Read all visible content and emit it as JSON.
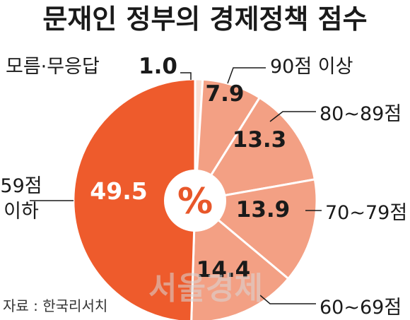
{
  "chart_data": {
    "type": "pie",
    "title": "문재인 정부의 경제정책 점수",
    "center_label": "%",
    "source": "자료 : 한국리서치",
    "watermark": "서울경제",
    "slices": [
      {
        "label": "모름·무응답",
        "value": 1.0,
        "value_text": "1.0",
        "color": "#fbe0d4"
      },
      {
        "label": "90점 이상",
        "value": 7.9,
        "value_text": "7.9",
        "color": "#f3a084"
      },
      {
        "label": "80~89점",
        "value": 13.3,
        "value_text": "13.3",
        "color": "#f3a084"
      },
      {
        "label": "70~79점",
        "value": 13.9,
        "value_text": "13.9",
        "color": "#f3a084"
      },
      {
        "label": "60~69점",
        "value": 14.4,
        "value_text": "14.4",
        "color": "#f3a084"
      },
      {
        "label": "59점 이하",
        "value": 49.5,
        "value_text": "49.5",
        "color": "#ee5b2c"
      }
    ]
  }
}
